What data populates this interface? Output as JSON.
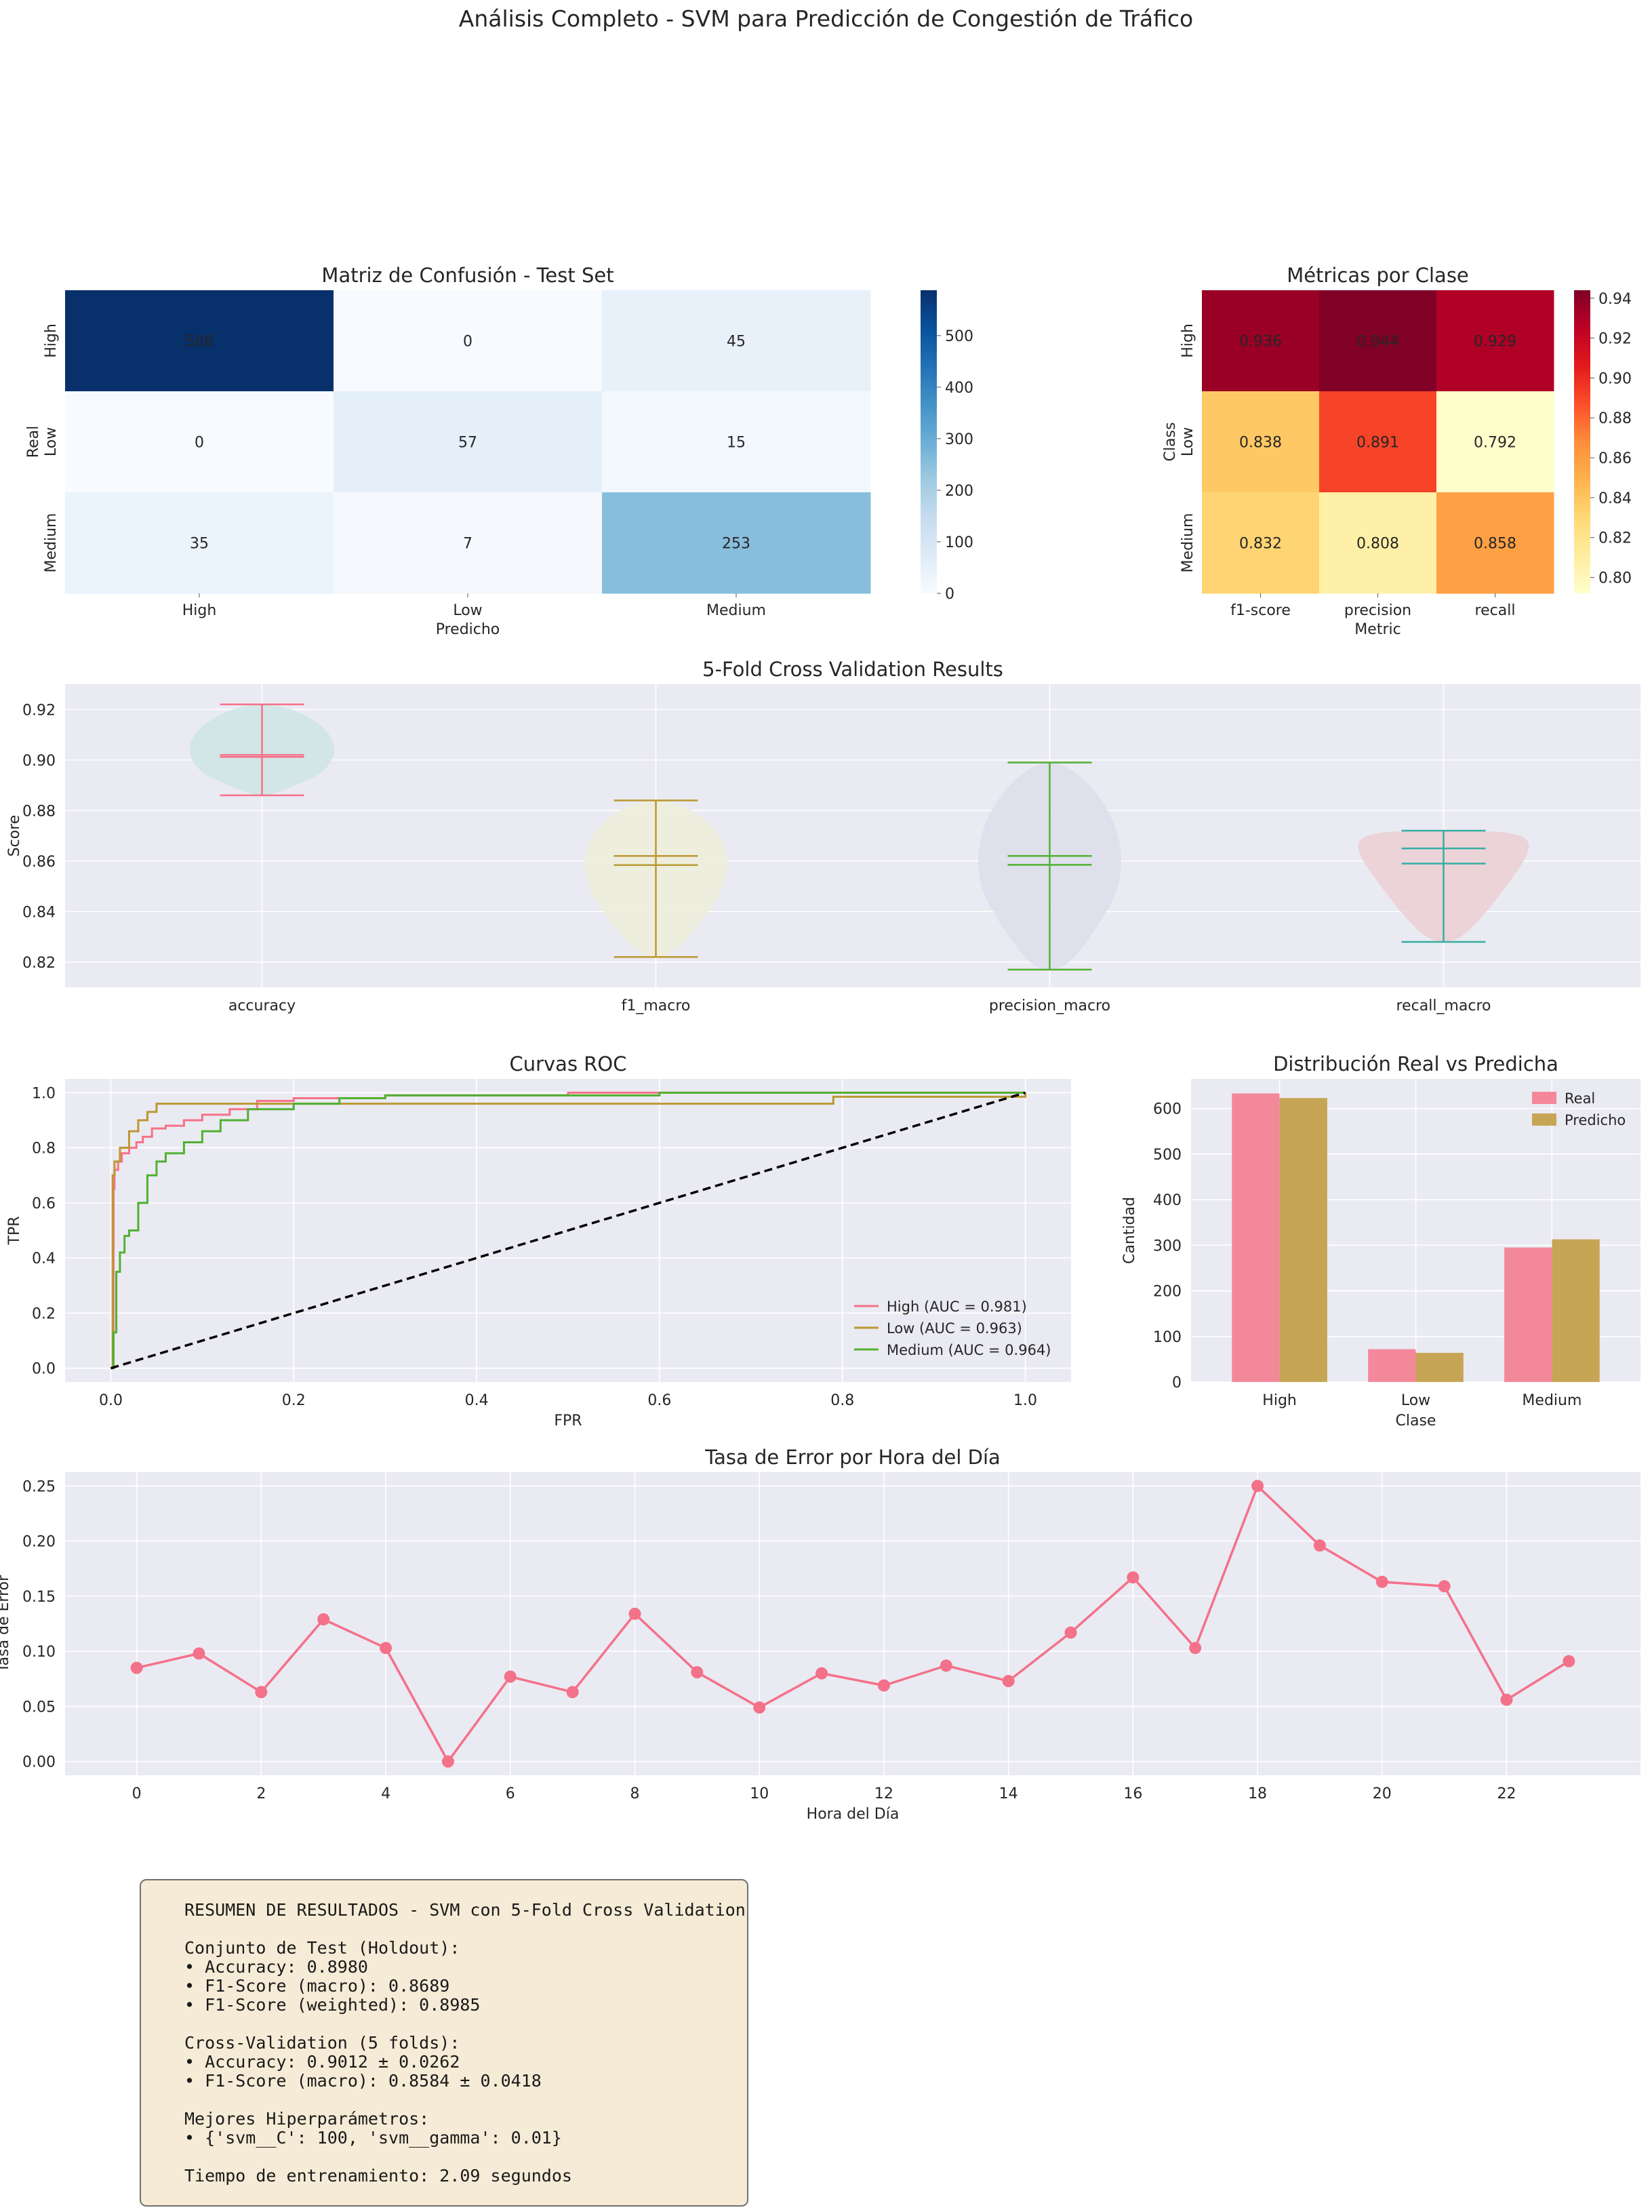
{
  "suptitle": "Análisis Completo - SVM para Predicción de Congestión de Tráfico",
  "chart_data": [
    {
      "type": "heatmap",
      "title": "Matriz de Confusión - Test Set",
      "xlabel": "Predicho",
      "ylabel": "Real",
      "rows": [
        "High",
        "Low",
        "Medium"
      ],
      "cols": [
        "High",
        "Low",
        "Medium"
      ],
      "values": [
        [
          588,
          0,
          45
        ],
        [
          0,
          57,
          15
        ],
        [
          35,
          7,
          253
        ]
      ],
      "colorbar_ticks": [
        "0",
        "100",
        "200",
        "300",
        "400",
        "500"
      ],
      "colormap": "Blues",
      "vmin": 0,
      "vmax": 588
    },
    {
      "type": "heatmap",
      "title": "Métricas por Clase",
      "xlabel": "Metric",
      "ylabel": "Class",
      "rows": [
        "High",
        "Low",
        "Medium"
      ],
      "cols": [
        "f1-score",
        "precision",
        "recall"
      ],
      "values": [
        [
          0.936,
          0.944,
          0.929
        ],
        [
          0.838,
          0.891,
          0.792
        ],
        [
          0.832,
          0.808,
          0.858
        ]
      ],
      "labels": [
        [
          "0.936",
          "0.944",
          "0.929"
        ],
        [
          "0.838",
          "0.891",
          "0.792"
        ],
        [
          "0.832",
          "0.808",
          "0.858"
        ]
      ],
      "colorbar_ticks": [
        "0.80",
        "0.82",
        "0.84",
        "0.86",
        "0.88",
        "0.90",
        "0.92",
        "0.94"
      ],
      "colormap": "YlOrRd",
      "vmin": 0.792,
      "vmax": 0.944
    },
    {
      "type": "violin",
      "title": "5-Fold Cross Validation Results",
      "ylabel": "Score",
      "ylim": [
        0.81,
        0.93
      ],
      "yticks": [
        "0.82",
        "0.84",
        "0.86",
        "0.88",
        "0.90",
        "0.92"
      ],
      "categories": [
        "accuracy",
        "f1_macro",
        "precision_macro",
        "recall_macro"
      ],
      "series": [
        {
          "min": 0.886,
          "max": 0.922,
          "mean": 0.9012,
          "median": 0.902,
          "color": "#f77189",
          "fill": "#cfe5e6"
        },
        {
          "min": 0.822,
          "max": 0.884,
          "mean": 0.8584,
          "median": 0.862,
          "color": "#bb9832",
          "fill": "#eeeedb"
        },
        {
          "min": 0.817,
          "max": 0.899,
          "mean": 0.8585,
          "median": 0.862,
          "color": "#50b131",
          "fill": "#dedfea"
        },
        {
          "min": 0.828,
          "max": 0.872,
          "mean": 0.859,
          "median": 0.865,
          "color": "#36ada4",
          "fill": "#ecd0d5"
        }
      ]
    },
    {
      "type": "line",
      "title": "Curvas ROC",
      "xlabel": "FPR",
      "ylabel": "TPR",
      "xlim": [
        -0.05,
        1.05
      ],
      "ylim": [
        -0.05,
        1.05
      ],
      "xticks": [
        "0.0",
        "0.2",
        "0.4",
        "0.6",
        "0.8",
        "1.0"
      ],
      "yticks": [
        "0.0",
        "0.2",
        "0.4",
        "0.6",
        "0.8",
        "1.0"
      ],
      "legend_position": "lower-right",
      "series": [
        {
          "name": "High (AUC = 0.981)",
          "color": "#f77189",
          "x": [
            0,
            0.003,
            0.004,
            0.008,
            0.012,
            0.02,
            0.028,
            0.035,
            0.045,
            0.06,
            0.08,
            0.1,
            0.13,
            0.16,
            0.2,
            0.3,
            0.5,
            1.0
          ],
          "y": [
            0,
            0.65,
            0.72,
            0.75,
            0.78,
            0.8,
            0.82,
            0.84,
            0.87,
            0.88,
            0.9,
            0.92,
            0.94,
            0.97,
            0.98,
            0.99,
            1.0,
            1.0
          ]
        },
        {
          "name": "Low (AUC = 0.963)",
          "color": "#bb9832",
          "x": [
            0,
            0.002,
            0.004,
            0.01,
            0.02,
            0.03,
            0.04,
            0.05,
            0.2,
            0.4,
            0.6,
            0.78,
            0.79,
            1.0
          ],
          "y": [
            0,
            0.7,
            0.75,
            0.8,
            0.86,
            0.9,
            0.93,
            0.96,
            0.96,
            0.96,
            0.96,
            0.96,
            0.985,
            1.0
          ]
        },
        {
          "name": "Medium (AUC = 0.964)",
          "color": "#50b131",
          "x": [
            0,
            0.003,
            0.006,
            0.01,
            0.015,
            0.02,
            0.03,
            0.04,
            0.05,
            0.06,
            0.08,
            0.1,
            0.12,
            0.15,
            0.2,
            0.25,
            0.3,
            0.6,
            1.0
          ],
          "y": [
            0,
            0.13,
            0.35,
            0.42,
            0.48,
            0.5,
            0.6,
            0.7,
            0.75,
            0.78,
            0.82,
            0.86,
            0.9,
            0.94,
            0.96,
            0.98,
            0.99,
            1.0,
            1.0
          ]
        },
        {
          "name": "",
          "color": "#000000",
          "dashed": true,
          "x": [
            0,
            1
          ],
          "y": [
            0,
            1
          ]
        }
      ]
    },
    {
      "type": "bar",
      "title": "Distribución Real vs Predicha",
      "xlabel": "Clase",
      "ylabel": "Cantidad",
      "ylim": [
        0,
        665
      ],
      "yticks": [
        "0",
        "100",
        "200",
        "300",
        "400",
        "500",
        "600"
      ],
      "categories": [
        "High",
        "Low",
        "Medium"
      ],
      "legend_position": "top-right",
      "series": [
        {
          "name": "Real",
          "color": "#f4889b",
          "values": [
            633,
            72,
            295
          ]
        },
        {
          "name": "Predicho",
          "color": "#c6a655",
          "values": [
            623,
            64,
            313
          ]
        }
      ]
    },
    {
      "type": "line",
      "title": "Tasa de Error por Hora del Día",
      "xlabel": "Hora del Día",
      "ylabel": "Tasa de Error",
      "ylim": [
        -0.0125,
        0.2625
      ],
      "xticks": [
        "0",
        "2",
        "4",
        "6",
        "8",
        "10",
        "12",
        "14",
        "16",
        "18",
        "20",
        "22"
      ],
      "yticks": [
        "0.00",
        "0.05",
        "0.10",
        "0.15",
        "0.20",
        "0.25"
      ],
      "series": [
        {
          "name": "",
          "color": "#f4718a",
          "x": [
            0,
            1,
            2,
            3,
            4,
            5,
            6,
            7,
            8,
            9,
            10,
            11,
            12,
            13,
            14,
            15,
            16,
            17,
            18,
            19,
            20,
            21,
            22,
            23
          ],
          "y": [
            0.085,
            0.098,
            0.063,
            0.129,
            0.103,
            0.0,
            0.077,
            0.063,
            0.134,
            0.081,
            0.049,
            0.08,
            0.069,
            0.087,
            0.073,
            0.117,
            0.167,
            0.103,
            0.25,
            0.196,
            0.163,
            0.159,
            0.056,
            0.091
          ]
        }
      ]
    }
  ],
  "summary": {
    "lines": [
      "RESUMEN DE RESULTADOS - SVM con 5-Fold Cross Validation",
      "",
      "Conjunto de Test (Holdout):",
      "• Accuracy: 0.8980",
      "• F1-Score (macro): 0.8689",
      "• F1-Score (weighted): 0.8985",
      "",
      "Cross-Validation (5 folds):",
      "• Accuracy: 0.9012 ± 0.0262",
      "• F1-Score (macro): 0.8584 ± 0.0418",
      "",
      "Mejores Hiperparámetros:",
      "• {'svm__C': 100, 'svm__gamma': 0.01}",
      "",
      "Tiempo de entrenamiento: 2.09 segundos"
    ]
  }
}
